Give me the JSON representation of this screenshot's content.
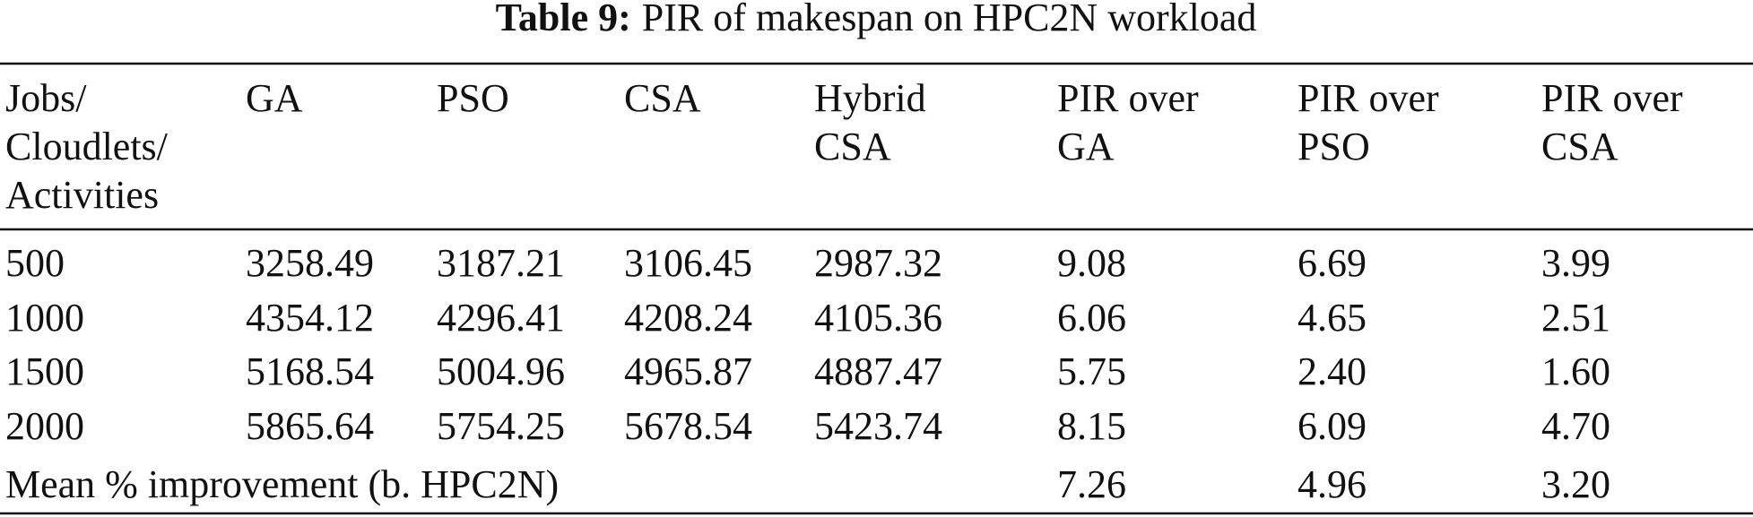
{
  "caption": {
    "label": "Table 9:",
    "text": "PIR of makespan on HPC2N workload"
  },
  "table": {
    "header": [
      [
        "Jobs/",
        "Cloudlets/",
        "Activities"
      ],
      [
        "GA"
      ],
      [
        "PSO"
      ],
      [
        "CSA"
      ],
      [
        "Hybrid",
        "CSA"
      ],
      [
        "PIR over",
        "GA"
      ],
      [
        "PIR over",
        "PSO"
      ],
      [
        "PIR over",
        "CSA"
      ]
    ],
    "rows": [
      [
        "500",
        "3258.49",
        "3187.21",
        "3106.45",
        "2987.32",
        "9.08",
        "6.69",
        "3.99"
      ],
      [
        "1000",
        "4354.12",
        "4296.41",
        "4208.24",
        "4105.36",
        "6.06",
        "4.65",
        "2.51"
      ],
      [
        "1500",
        "5168.54",
        "5004.96",
        "4965.87",
        "4887.47",
        "5.75",
        "2.40",
        "1.60"
      ],
      [
        "2000",
        "5865.64",
        "5754.25",
        "5678.54",
        "5423.74",
        "8.15",
        "6.09",
        "4.70"
      ]
    ],
    "footer": {
      "label": "Mean % improvement (b. HPC2N)",
      "values": [
        "7.26",
        "4.96",
        "3.20"
      ]
    }
  }
}
